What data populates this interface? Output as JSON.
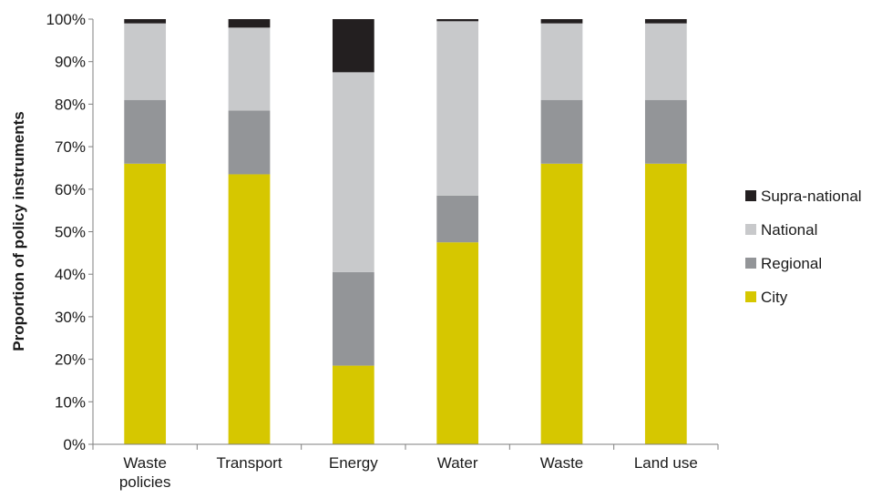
{
  "chart_data": {
    "type": "bar",
    "stacked": true,
    "title": "",
    "xlabel": "",
    "ylabel": "Proportion of policy instruments",
    "ylim": [
      0,
      100
    ],
    "y_ticks": [
      "0%",
      "10%",
      "20%",
      "30%",
      "40%",
      "50%",
      "60%",
      "70%",
      "80%",
      "90%",
      "100%"
    ],
    "grid": false,
    "legend_position": "right",
    "categories": [
      [
        "Waste",
        "policies"
      ],
      [
        "Transport"
      ],
      [
        "Energy"
      ],
      [
        "Water"
      ],
      [
        "Waste"
      ],
      [
        "Land use"
      ]
    ],
    "series": [
      {
        "name": "City",
        "color": "#d6c700",
        "values": [
          66,
          63.5,
          18.5,
          47.5,
          66,
          66
        ]
      },
      {
        "name": "Regional",
        "color": "#939598",
        "values": [
          15,
          15,
          22,
          11,
          15,
          15
        ]
      },
      {
        "name": "National",
        "color": "#c8c9cb",
        "values": [
          18,
          19.5,
          47,
          41,
          18,
          18
        ]
      },
      {
        "name": "Supra-national",
        "color": "#231f20",
        "values": [
          1,
          2,
          12.5,
          0.5,
          1,
          1
        ]
      }
    ],
    "legend_order": [
      "Supra-national",
      "National",
      "Regional",
      "City"
    ]
  }
}
